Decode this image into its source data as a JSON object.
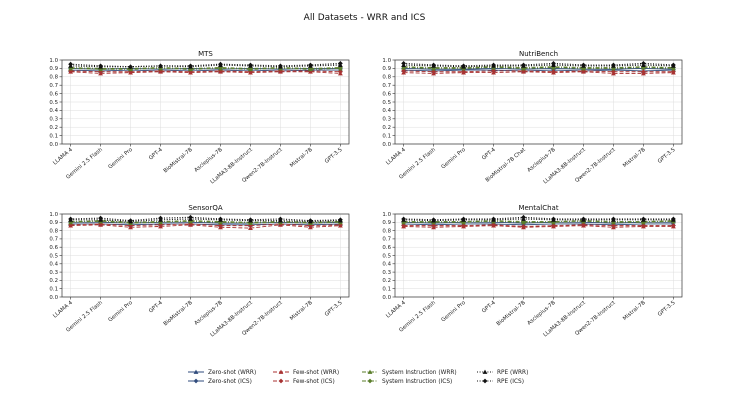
{
  "figure": {
    "title": "All Datasets - WRR and ICS"
  },
  "colors": {
    "zero_shot": "#2f4b7c",
    "few_shot": "#a83232",
    "system_instruction": "#5a7d2a",
    "rpe": "#111111",
    "grid": "#dddddd",
    "axis": "#333333"
  },
  "legend": {
    "entries": [
      {
        "label": "Zero-shot (WRR)",
        "key": "zero_shot",
        "style": "solid",
        "marker": "triangle"
      },
      {
        "label": "Zero-shot (ICS)",
        "key": "zero_shot",
        "style": "solid",
        "marker": "diamond"
      },
      {
        "label": "Few-shot (WRR)",
        "key": "few_shot",
        "style": "dashed",
        "marker": "triangle"
      },
      {
        "label": "Few-shot (ICS)",
        "key": "few_shot",
        "style": "dashed",
        "marker": "diamond"
      },
      {
        "label": "System Instruction (WRR)",
        "key": "system_instruction",
        "style": "dashdot",
        "marker": "triangle"
      },
      {
        "label": "System Instruction (ICS)",
        "key": "system_instruction",
        "style": "dashdot",
        "marker": "diamond"
      },
      {
        "label": "RPE (WRR)",
        "key": "rpe",
        "style": "dotted",
        "marker": "triangle"
      },
      {
        "label": "RPE (ICS)",
        "key": "rpe",
        "style": "dotted",
        "marker": "diamond"
      }
    ]
  },
  "chart_data": [
    {
      "type": "line",
      "title": "MTS",
      "ylim": [
        0.0,
        1.0
      ],
      "yticks": [
        0.0,
        0.1,
        0.2,
        0.3,
        0.4,
        0.5,
        0.6,
        0.7,
        0.8,
        0.9,
        1.0
      ],
      "grid": true,
      "categories": [
        "LLAMA 4",
        "Gemini 2.5 Flash",
        "Gemini Pro",
        "GPT-4",
        "BioMistral-7B",
        "Asclepius-7B",
        "LLaMA3-8B-Instruct",
        "Qwen2-7B-Instruct",
        "Mistral-7B",
        "GPT-3.5"
      ],
      "series": [
        {
          "name": "Zero-shot (WRR)",
          "key": "zero_shot",
          "metric": "WRR",
          "values": [
            0.88,
            0.87,
            0.88,
            0.87,
            0.88,
            0.87,
            0.88,
            0.87,
            0.88,
            0.88
          ]
        },
        {
          "name": "Zero-shot (ICS)",
          "key": "zero_shot",
          "metric": "ICS",
          "values": [
            0.9,
            0.89,
            0.9,
            0.89,
            0.9,
            0.89,
            0.9,
            0.89,
            0.9,
            0.9
          ]
        },
        {
          "name": "Few-shot (WRR)",
          "key": "few_shot",
          "metric": "WRR",
          "values": [
            0.86,
            0.84,
            0.85,
            0.86,
            0.85,
            0.86,
            0.85,
            0.86,
            0.86,
            0.84
          ]
        },
        {
          "name": "Few-shot (ICS)",
          "key": "few_shot",
          "metric": "ICS",
          "values": [
            0.87,
            0.86,
            0.86,
            0.87,
            0.86,
            0.87,
            0.86,
            0.87,
            0.87,
            0.86
          ]
        },
        {
          "name": "System Instruction (WRR)",
          "key": "system_instruction",
          "metric": "WRR",
          "values": [
            0.9,
            0.89,
            0.89,
            0.9,
            0.89,
            0.9,
            0.89,
            0.9,
            0.89,
            0.9
          ]
        },
        {
          "name": "System Instruction (ICS)",
          "key": "system_instruction",
          "metric": "ICS",
          "values": [
            0.91,
            0.9,
            0.9,
            0.91,
            0.9,
            0.91,
            0.9,
            0.91,
            0.9,
            0.91
          ]
        },
        {
          "name": "RPE (WRR)",
          "key": "rpe",
          "metric": "WRR",
          "values": [
            0.93,
            0.92,
            0.92,
            0.93,
            0.92,
            0.94,
            0.93,
            0.92,
            0.93,
            0.94
          ]
        },
        {
          "name": "RPE (ICS)",
          "key": "rpe",
          "metric": "ICS",
          "values": [
            0.95,
            0.93,
            0.92,
            0.93,
            0.93,
            0.95,
            0.94,
            0.93,
            0.94,
            0.96
          ]
        }
      ]
    },
    {
      "type": "line",
      "title": "NutriBench",
      "ylim": [
        0.0,
        1.0
      ],
      "yticks": [
        0.0,
        0.1,
        0.2,
        0.3,
        0.4,
        0.5,
        0.6,
        0.7,
        0.8,
        0.9,
        1.0
      ],
      "grid": true,
      "categories": [
        "LLAMA 4",
        "Gemini 2.5 Flash",
        "Gemini Pro",
        "GPT-4",
        "BioMistral-7B Chat",
        "Asclepius-7B",
        "LLaMA3-8B-Instruct",
        "Qwen2-7B-Instruct",
        "Mistral-7B",
        "GPT-3.5"
      ],
      "series": [
        {
          "name": "Zero-shot (WRR)",
          "key": "zero_shot",
          "metric": "WRR",
          "values": [
            0.88,
            0.87,
            0.88,
            0.88,
            0.87,
            0.88,
            0.87,
            0.88,
            0.87,
            0.88
          ]
        },
        {
          "name": "Zero-shot (ICS)",
          "key": "zero_shot",
          "metric": "ICS",
          "values": [
            0.9,
            0.89,
            0.89,
            0.9,
            0.89,
            0.9,
            0.89,
            0.89,
            0.9,
            0.89
          ]
        },
        {
          "name": "Few-shot (WRR)",
          "key": "few_shot",
          "metric": "WRR",
          "values": [
            0.85,
            0.84,
            0.85,
            0.85,
            0.86,
            0.85,
            0.86,
            0.84,
            0.84,
            0.85
          ]
        },
        {
          "name": "Few-shot (ICS)",
          "key": "few_shot",
          "metric": "ICS",
          "values": [
            0.87,
            0.86,
            0.86,
            0.87,
            0.87,
            0.86,
            0.87,
            0.86,
            0.86,
            0.86
          ]
        },
        {
          "name": "System Instruction (WRR)",
          "key": "system_instruction",
          "metric": "WRR",
          "values": [
            0.91,
            0.9,
            0.9,
            0.91,
            0.9,
            0.91,
            0.9,
            0.9,
            0.91,
            0.9
          ]
        },
        {
          "name": "System Instruction (ICS)",
          "key": "system_instruction",
          "metric": "ICS",
          "values": [
            0.92,
            0.91,
            0.91,
            0.92,
            0.91,
            0.92,
            0.91,
            0.91,
            0.92,
            0.91
          ]
        },
        {
          "name": "RPE (WRR)",
          "key": "rpe",
          "metric": "WRR",
          "values": [
            0.94,
            0.93,
            0.92,
            0.93,
            0.93,
            0.94,
            0.93,
            0.93,
            0.94,
            0.93
          ]
        },
        {
          "name": "RPE (ICS)",
          "key": "rpe",
          "metric": "ICS",
          "values": [
            0.96,
            0.94,
            0.93,
            0.94,
            0.94,
            0.96,
            0.94,
            0.94,
            0.96,
            0.94
          ]
        }
      ]
    },
    {
      "type": "line",
      "title": "SensorQA",
      "ylim": [
        0.0,
        1.0
      ],
      "yticks": [
        0.0,
        0.1,
        0.2,
        0.3,
        0.4,
        0.5,
        0.6,
        0.7,
        0.8,
        0.9,
        1.0
      ],
      "grid": true,
      "categories": [
        "LLAMA 4",
        "Gemini 2.5 Flash",
        "Gemini Pro",
        "GPT-4",
        "BioMistral-7B",
        "Asclepius-7B",
        "LLaMA3-8B-Instruct",
        "Qwen2-7B-Instruct",
        "Mistral-7B",
        "GPT-3.5"
      ],
      "series": [
        {
          "name": "Zero-shot (WRR)",
          "key": "zero_shot",
          "metric": "WRR",
          "values": [
            0.88,
            0.88,
            0.87,
            0.88,
            0.88,
            0.87,
            0.87,
            0.88,
            0.87,
            0.88
          ]
        },
        {
          "name": "Zero-shot (ICS)",
          "key": "zero_shot",
          "metric": "ICS",
          "values": [
            0.9,
            0.9,
            0.89,
            0.9,
            0.9,
            0.89,
            0.89,
            0.9,
            0.89,
            0.9
          ]
        },
        {
          "name": "Few-shot (WRR)",
          "key": "few_shot",
          "metric": "WRR",
          "values": [
            0.86,
            0.87,
            0.84,
            0.85,
            0.87,
            0.84,
            0.83,
            0.87,
            0.84,
            0.86
          ]
        },
        {
          "name": "Few-shot (ICS)",
          "key": "few_shot",
          "metric": "ICS",
          "values": [
            0.87,
            0.88,
            0.86,
            0.87,
            0.88,
            0.86,
            0.86,
            0.88,
            0.86,
            0.87
          ]
        },
        {
          "name": "System Instruction (WRR)",
          "key": "system_instruction",
          "metric": "WRR",
          "values": [
            0.9,
            0.91,
            0.89,
            0.9,
            0.91,
            0.9,
            0.89,
            0.9,
            0.89,
            0.9
          ]
        },
        {
          "name": "System Instruction (ICS)",
          "key": "system_instruction",
          "metric": "ICS",
          "values": [
            0.91,
            0.92,
            0.9,
            0.91,
            0.92,
            0.91,
            0.9,
            0.91,
            0.9,
            0.91
          ]
        },
        {
          "name": "RPE (WRR)",
          "key": "rpe",
          "metric": "WRR",
          "values": [
            0.93,
            0.93,
            0.91,
            0.93,
            0.94,
            0.93,
            0.92,
            0.92,
            0.91,
            0.92
          ]
        },
        {
          "name": "RPE (ICS)",
          "key": "rpe",
          "metric": "ICS",
          "values": [
            0.94,
            0.95,
            0.92,
            0.95,
            0.96,
            0.94,
            0.93,
            0.94,
            0.92,
            0.93
          ]
        }
      ]
    },
    {
      "type": "line",
      "title": "MentalChat",
      "ylim": [
        0.0,
        1.0
      ],
      "yticks": [
        0.0,
        0.1,
        0.2,
        0.3,
        0.4,
        0.5,
        0.6,
        0.7,
        0.8,
        0.9,
        1.0
      ],
      "grid": true,
      "categories": [
        "LLAMA 4",
        "Gemini 2.5 Flash",
        "Gemini Pro",
        "GPT-4",
        "BioMistral-7B",
        "Asclepius-7B",
        "LLaMA3-8B-Instruct",
        "Qwen2-7B-Instruct",
        "Mistral-7B",
        "GPT-3.5"
      ],
      "series": [
        {
          "name": "Zero-shot (WRR)",
          "key": "zero_shot",
          "metric": "WRR",
          "values": [
            0.88,
            0.87,
            0.88,
            0.88,
            0.87,
            0.88,
            0.88,
            0.87,
            0.88,
            0.88
          ]
        },
        {
          "name": "Zero-shot (ICS)",
          "key": "zero_shot",
          "metric": "ICS",
          "values": [
            0.9,
            0.89,
            0.9,
            0.9,
            0.89,
            0.9,
            0.9,
            0.89,
            0.9,
            0.9
          ]
        },
        {
          "name": "Few-shot (WRR)",
          "key": "few_shot",
          "metric": "WRR",
          "values": [
            0.85,
            0.84,
            0.85,
            0.86,
            0.84,
            0.85,
            0.86,
            0.84,
            0.85,
            0.85
          ]
        },
        {
          "name": "Few-shot (ICS)",
          "key": "few_shot",
          "metric": "ICS",
          "values": [
            0.86,
            0.86,
            0.86,
            0.87,
            0.85,
            0.86,
            0.87,
            0.86,
            0.86,
            0.86
          ]
        },
        {
          "name": "System Instruction (WRR)",
          "key": "system_instruction",
          "metric": "WRR",
          "values": [
            0.9,
            0.9,
            0.9,
            0.91,
            0.9,
            0.9,
            0.91,
            0.9,
            0.9,
            0.91
          ]
        },
        {
          "name": "System Instruction (ICS)",
          "key": "system_instruction",
          "metric": "ICS",
          "values": [
            0.91,
            0.91,
            0.91,
            0.92,
            0.91,
            0.91,
            0.92,
            0.91,
            0.91,
            0.92
          ]
        },
        {
          "name": "RPE (WRR)",
          "key": "rpe",
          "metric": "WRR",
          "values": [
            0.93,
            0.92,
            0.93,
            0.93,
            0.94,
            0.93,
            0.93,
            0.93,
            0.93,
            0.93
          ]
        },
        {
          "name": "RPE (ICS)",
          "key": "rpe",
          "metric": "ICS",
          "values": [
            0.94,
            0.93,
            0.94,
            0.94,
            0.96,
            0.94,
            0.94,
            0.94,
            0.94,
            0.94
          ]
        }
      ]
    }
  ]
}
